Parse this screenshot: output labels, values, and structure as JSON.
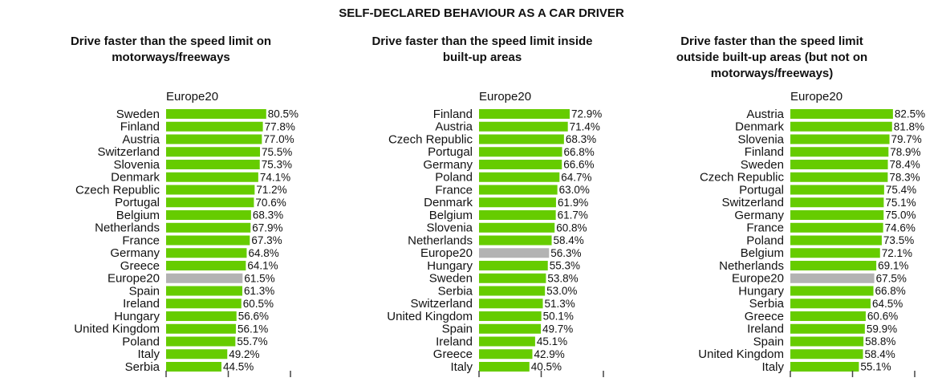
{
  "title": "SELF-DECLARED BEHAVIOUR AS A CAR DRIVER",
  "chart_data": [
    {
      "type": "bar",
      "orientation": "horizontal",
      "title": [
        "Drive faster than the speed limit on",
        "motorways/freeways"
      ],
      "categories": [
        "Sweden",
        "Finland",
        "Austria",
        "Switzerland",
        "Slovenia",
        "Denmark",
        "Czech Republic",
        "Portugal",
        "Belgium",
        "Netherlands",
        "France",
        "Germany",
        "Greece",
        "Europe20",
        "Spain",
        "Ireland",
        "Hungary",
        "United Kingdom",
        "Poland",
        "Italy",
        "Serbia"
      ],
      "series": [
        {
          "name": "Europe20",
          "values": [
            80.5,
            77.8,
            77.0,
            75.5,
            75.3,
            74.1,
            71.2,
            70.6,
            68.3,
            67.9,
            67.3,
            64.8,
            64.1,
            61.5,
            61.3,
            60.5,
            56.6,
            56.1,
            55.7,
            49.2,
            44.5
          ],
          "value_labels": [
            "80.5%",
            "77.8%",
            "77.0%",
            "75.5%",
            "75.3%",
            "74.1%",
            "71.2%",
            "70.6%",
            "68.3%",
            "67.9%",
            "67.3%",
            "64.8%",
            "64.1%",
            "61.5%",
            "61.3%",
            "60.5%",
            "56.6%",
            "56.1%",
            "55.7%",
            "49.2%",
            "44.5%"
          ],
          "colors": [
            "#66cc00",
            "#66cc00",
            "#66cc00",
            "#66cc00",
            "#66cc00",
            "#66cc00",
            "#66cc00",
            "#66cc00",
            "#66cc00",
            "#66cc00",
            "#66cc00",
            "#66cc00",
            "#66cc00",
            "#b3b3b3",
            "#66cc00",
            "#66cc00",
            "#66cc00",
            "#66cc00",
            "#66cc00",
            "#66cc00",
            "#66cc00"
          ]
        }
      ],
      "xlim": [
        0,
        100
      ],
      "xticks": [
        0,
        50,
        100
      ]
    },
    {
      "type": "bar",
      "orientation": "horizontal",
      "title": [
        "Drive faster than the speed limit inside",
        "built-up areas"
      ],
      "categories": [
        "Finland",
        "Austria",
        "Czech Republic",
        "Portugal",
        "Germany",
        "Poland",
        "France",
        "Denmark",
        "Belgium",
        "Slovenia",
        "Netherlands",
        "Europe20",
        "Hungary",
        "Sweden",
        "Serbia",
        "Switzerland",
        "United Kingdom",
        "Spain",
        "Ireland",
        "Greece",
        "Italy"
      ],
      "series": [
        {
          "name": "Europe20",
          "values": [
            72.9,
            71.4,
            68.3,
            66.8,
            66.6,
            64.7,
            63.0,
            61.9,
            61.7,
            60.8,
            58.4,
            56.3,
            55.3,
            53.8,
            53.0,
            51.3,
            50.1,
            49.7,
            45.1,
            42.9,
            40.5
          ],
          "value_labels": [
            "72.9%",
            "71.4%",
            "68.3%",
            "66.8%",
            "66.6%",
            "64.7%",
            "63.0%",
            "61.9%",
            "61.7%",
            "60.8%",
            "58.4%",
            "56.3%",
            "55.3%",
            "53.8%",
            "53.0%",
            "51.3%",
            "50.1%",
            "49.7%",
            "45.1%",
            "42.9%",
            "40.5%"
          ],
          "colors": [
            "#66cc00",
            "#66cc00",
            "#66cc00",
            "#66cc00",
            "#66cc00",
            "#66cc00",
            "#66cc00",
            "#66cc00",
            "#66cc00",
            "#66cc00",
            "#66cc00",
            "#b3b3b3",
            "#66cc00",
            "#66cc00",
            "#66cc00",
            "#66cc00",
            "#66cc00",
            "#66cc00",
            "#66cc00",
            "#66cc00",
            "#66cc00"
          ]
        }
      ],
      "xlim": [
        0,
        100
      ],
      "xticks": [
        0,
        50,
        100
      ]
    },
    {
      "type": "bar",
      "orientation": "horizontal",
      "title": [
        "Drive faster than the speed limit",
        "outside built-up areas (but not on",
        "motorways/freeways)"
      ],
      "categories": [
        "Austria",
        "Denmark",
        "Slovenia",
        "Finland",
        "Sweden",
        "Czech Republic",
        "Portugal",
        "Switzerland",
        "Germany",
        "France",
        "Poland",
        "Belgium",
        "Netherlands",
        "Europe20",
        "Hungary",
        "Serbia",
        "Greece",
        "Ireland",
        "Spain",
        "United Kingdom",
        "Italy"
      ],
      "series": [
        {
          "name": "Europe20",
          "values": [
            82.5,
            81.8,
            79.7,
            78.9,
            78.4,
            78.3,
            75.4,
            75.1,
            75.0,
            74.6,
            73.5,
            72.1,
            69.1,
            67.5,
            66.8,
            64.5,
            60.6,
            59.9,
            58.8,
            58.4,
            55.1
          ],
          "value_labels": [
            "82.5%",
            "81.8%",
            "79.7%",
            "78.9%",
            "78.4%",
            "78.3%",
            "75.4%",
            "75.1%",
            "75.0%",
            "74.6%",
            "73.5%",
            "72.1%",
            "69.1%",
            "67.5%",
            "66.8%",
            "64.5%",
            "60.6%",
            "59.9%",
            "58.8%",
            "58.4%",
            "55.1%"
          ],
          "colors": [
            "#66cc00",
            "#66cc00",
            "#66cc00",
            "#66cc00",
            "#66cc00",
            "#66cc00",
            "#66cc00",
            "#66cc00",
            "#66cc00",
            "#66cc00",
            "#66cc00",
            "#66cc00",
            "#66cc00",
            "#b3b3b3",
            "#66cc00",
            "#66cc00",
            "#66cc00",
            "#66cc00",
            "#66cc00",
            "#66cc00",
            "#66cc00"
          ]
        }
      ],
      "xlim": [
        0,
        100
      ],
      "xticks": [
        0,
        50,
        100
      ]
    }
  ]
}
